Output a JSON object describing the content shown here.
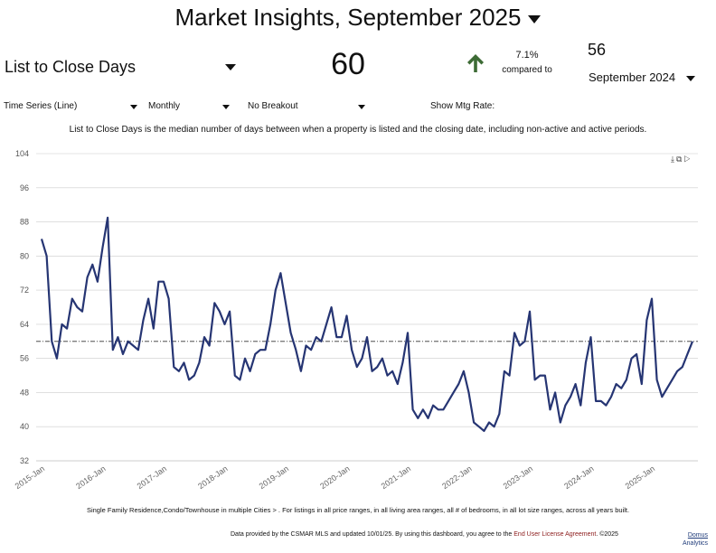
{
  "header": {
    "title": "Market Insights, September 2025"
  },
  "kpi": {
    "metric": "List to Close Days",
    "value": "60",
    "change_pct": "7.1%",
    "compared_label": "compared to",
    "compare_value": "56",
    "compare_period": "September 2024"
  },
  "controls": {
    "chart_type": "Time Series (Line)",
    "interval": "Monthly",
    "breakout": "No Breakout",
    "mtg_rate_label": "Show Mtg Rate:"
  },
  "description": "List to Close Days is the median number of days between when a property is listed and the closing date, including non-active and active periods.",
  "footer": {
    "filter_note": "Single Family Residence,Condo/Townhouse in multiple Cities > . For listings in all price ranges, in all living area ranges, all # of bedrooms, in all lot size ranges, across all years built.",
    "source_text": "Data provided by the CSMAR MLS and updated 10/01/25. By using this dashboard, you agree to the",
    "license_link": "End User License Agreement",
    "copyright": ". ©2025",
    "brand_line1": "Domus",
    "brand_line2": "Analytics"
  },
  "colors": {
    "line": "#263573",
    "arrow": "#3d6b35",
    "reference": "#333333",
    "grid": "#cccccc"
  },
  "chart_data": {
    "type": "line",
    "y_ticks": [
      "104",
      "96",
      "88",
      "80",
      "72",
      "64",
      "56",
      "48",
      "40",
      "32"
    ],
    "ylim": [
      32,
      104
    ],
    "x_ticks": [
      "2015-Jan",
      "2016-Jan",
      "2017-Jan",
      "2018-Jan",
      "2019-Jan",
      "2020-Jan",
      "2021-Jan",
      "2022-Jan",
      "2023-Jan",
      "2024-Jan",
      "2025-Jan"
    ],
    "x_start": "2015-Jan",
    "reference_value": 60,
    "series": [
      {
        "values": [
          84,
          80,
          60,
          56,
          64,
          63,
          70,
          68,
          67,
          75,
          78,
          74,
          82,
          89,
          58,
          61,
          57,
          60,
          59,
          58,
          65,
          70,
          63,
          74,
          74,
          70,
          54,
          53,
          55,
          51,
          52,
          55,
          61,
          59,
          69,
          67,
          64,
          67,
          52,
          51,
          56,
          53,
          57,
          58,
          58,
          64,
          72,
          76,
          69,
          62,
          58,
          53,
          59,
          58,
          61,
          60,
          64,
          68,
          61,
          61,
          66,
          58,
          54,
          56,
          61,
          53,
          54,
          56,
          52,
          53,
          50,
          55,
          62,
          44,
          42,
          44,
          42,
          45,
          44,
          44,
          46,
          48,
          50,
          53,
          48,
          41,
          40,
          39,
          41,
          40,
          43,
          53,
          52,
          62,
          59,
          60,
          67,
          51,
          52,
          52,
          44,
          48,
          41,
          45,
          47,
          50,
          45,
          55,
          61,
          46,
          46,
          45,
          47,
          50,
          49,
          51,
          56,
          57,
          50,
          65,
          70,
          51,
          47,
          49,
          51,
          53,
          54,
          57,
          60
        ]
      }
    ]
  }
}
